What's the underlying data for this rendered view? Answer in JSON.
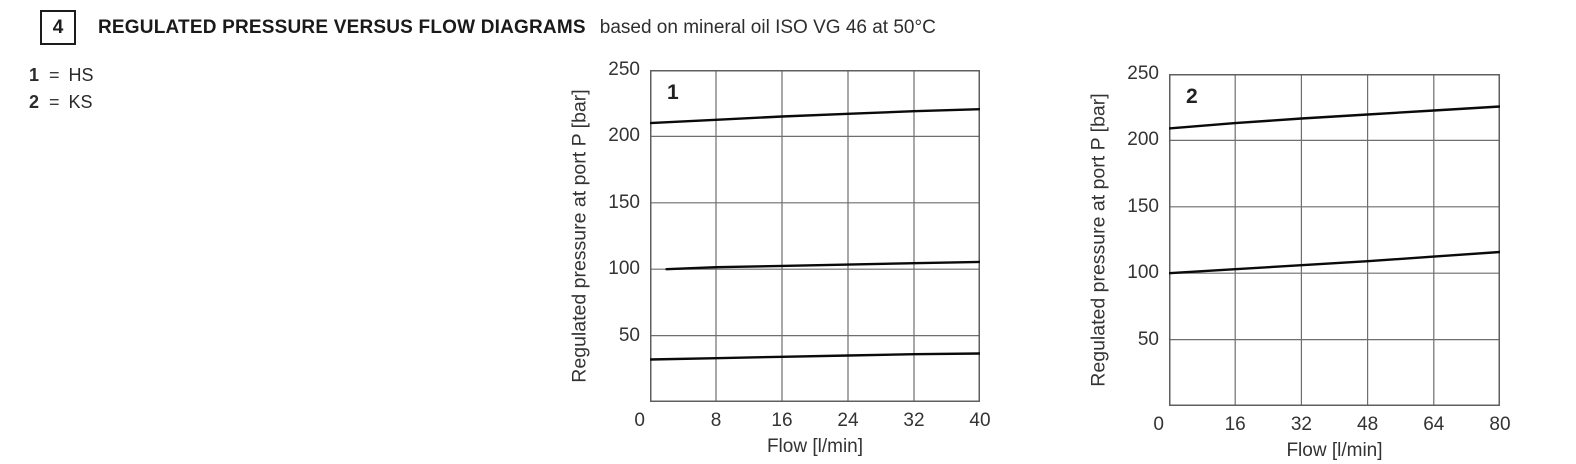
{
  "header": {
    "section_number": "4",
    "title": "REGULATED PRESSURE VERSUS FLOW DIAGRAMS",
    "subtitle": "based on mineral oil ISO VG 46 at 50°C"
  },
  "legend": {
    "items": [
      {
        "key": "1",
        "separator": "=",
        "value": "HS"
      },
      {
        "key": "2",
        "separator": "=",
        "value": "KS"
      }
    ]
  },
  "colors": {
    "grid": "#6e6e6e",
    "border": "#5f5f5f",
    "curve": "#0a0a0a",
    "text": "#333333"
  },
  "chart_data": [
    {
      "type": "line",
      "label": "1",
      "xlabel": "Flow [l/min]",
      "ylabel": "Regulated pressure at port P [bar]",
      "xlim": [
        0,
        40
      ],
      "ylim": [
        0,
        250
      ],
      "x_ticks": [
        0,
        8,
        16,
        24,
        32,
        40
      ],
      "y_ticks": [
        50,
        100,
        150,
        200,
        250
      ],
      "grid": true,
      "legend_position": "none",
      "series": [
        {
          "name": "pressure-setting-210-bar",
          "points": [
            [
              0,
              210
            ],
            [
              8,
              212.5
            ],
            [
              16,
              215
            ],
            [
              24,
              217
            ],
            [
              32,
              219
            ],
            [
              40,
              220.5
            ]
          ]
        },
        {
          "name": "pressure-setting-100-bar",
          "points": [
            [
              2,
              100
            ],
            [
              8,
              101.5
            ],
            [
              16,
              102.5
            ],
            [
              24,
              103.5
            ],
            [
              32,
              104.5
            ],
            [
              40,
              105.5
            ]
          ]
        },
        {
          "name": "pressure-setting-32-bar",
          "points": [
            [
              0,
              32
            ],
            [
              8,
              33
            ],
            [
              16,
              34
            ],
            [
              24,
              35
            ],
            [
              32,
              36
            ],
            [
              40,
              36.5
            ]
          ]
        }
      ]
    },
    {
      "type": "line",
      "label": "2",
      "xlabel": "Flow [l/min]",
      "ylabel": "Regulated pressure at port P [bar]",
      "xlim": [
        0,
        80
      ],
      "ylim": [
        0,
        250
      ],
      "x_ticks": [
        0,
        16,
        32,
        48,
        64,
        80
      ],
      "y_ticks": [
        50,
        100,
        150,
        200,
        250
      ],
      "grid": true,
      "legend_position": "none",
      "series": [
        {
          "name": "pressure-setting-210-bar",
          "points": [
            [
              0,
              209
            ],
            [
              16,
              213
            ],
            [
              32,
              216.5
            ],
            [
              48,
              219.5
            ],
            [
              64,
              222.5
            ],
            [
              80,
              225.5
            ]
          ]
        },
        {
          "name": "pressure-setting-100-bar",
          "points": [
            [
              0,
              100
            ],
            [
              16,
              103
            ],
            [
              32,
              106
            ],
            [
              48,
              109
            ],
            [
              64,
              112.5
            ],
            [
              80,
              116
            ]
          ]
        }
      ]
    }
  ]
}
